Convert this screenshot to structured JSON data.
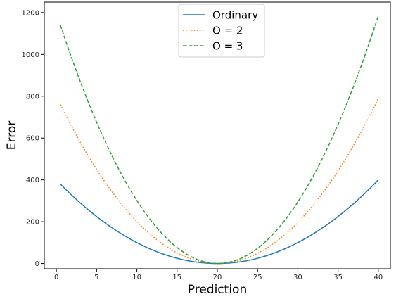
{
  "chart_data": {
    "type": "line",
    "title": "",
    "xlabel": "Prediction",
    "ylabel": "Error",
    "xlim": [
      -1.5,
      41.5
    ],
    "ylim": [
      -25,
      1250
    ],
    "xticks": [
      0,
      5,
      10,
      15,
      20,
      25,
      30,
      35,
      40
    ],
    "yticks": [
      0,
      200,
      400,
      600,
      800,
      1000,
      1200
    ],
    "grid": false,
    "legend_position": "upper center",
    "x_range": [
      0.5,
      40
    ],
    "series": [
      {
        "name": "Ordinary",
        "color": "#1f77b4",
        "style": "solid",
        "x": [
          0.5,
          5,
          10,
          15,
          20,
          25,
          30,
          35,
          40
        ],
        "y": [
          380,
          225,
          100,
          25,
          0,
          25,
          100,
          225,
          400
        ]
      },
      {
        "name": "O = 2",
        "color": "#ff7f0e",
        "style": "dotted",
        "x": [
          0.5,
          5,
          10,
          15,
          20,
          25,
          30,
          35,
          40
        ],
        "y": [
          760,
          450,
          200,
          50,
          0,
          50,
          200,
          450,
          790
        ]
      },
      {
        "name": "O = 3",
        "color": "#2ca02c",
        "style": "dashed",
        "x": [
          0.5,
          5,
          10,
          15,
          20,
          25,
          30,
          35,
          40
        ],
        "y": [
          1140,
          675,
          300,
          75,
          0,
          75,
          300,
          675,
          1185
        ]
      }
    ]
  }
}
